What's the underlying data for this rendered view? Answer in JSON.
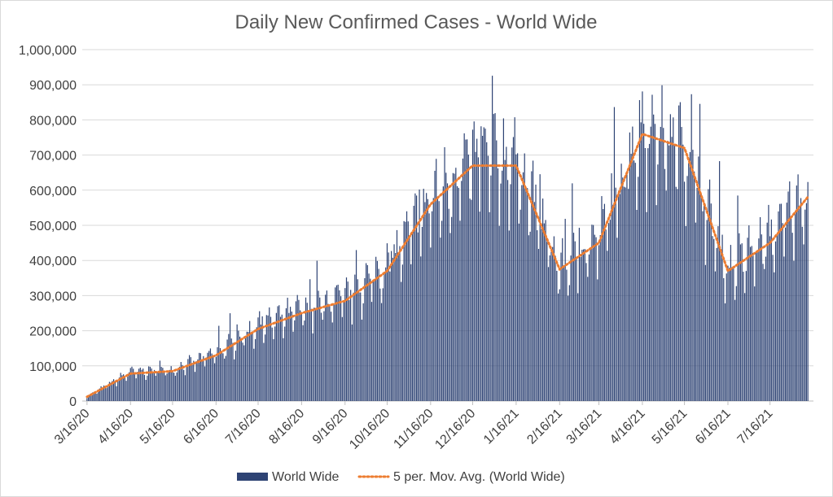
{
  "chart_data": {
    "type": "bar",
    "title": "Daily New Confirmed Cases - World Wide",
    "xlabel": "",
    "ylabel": "",
    "ylim": [
      0,
      1000000
    ],
    "yticks": [
      0,
      100000,
      200000,
      300000,
      400000,
      500000,
      600000,
      700000,
      800000,
      900000,
      1000000
    ],
    "ytick_labels": [
      "0",
      "100,000",
      "200,000",
      "300,000",
      "400,000",
      "500,000",
      "600,000",
      "700,000",
      "800,000",
      "900,000",
      "1,000,000"
    ],
    "x_start": "3/16/20",
    "x_end": "8/12/21",
    "x_tick_labels": [
      "3/16/20",
      "4/16/20",
      "5/16/20",
      "6/16/20",
      "7/16/20",
      "8/16/20",
      "9/16/20",
      "10/16/20",
      "11/16/20",
      "12/16/20",
      "1/16/21",
      "2/16/21",
      "3/16/21",
      "4/16/21",
      "5/16/21",
      "6/16/21",
      "7/16/21"
    ],
    "grid": true,
    "legend_position": "bottom",
    "colors": {
      "bars": "#2e4374",
      "moving_average": "#ed7d31"
    },
    "series": [
      {
        "name": "World Wide",
        "type": "bar",
        "monthly_anchor_values": [
          12000,
          82000,
          88000,
          135000,
          210000,
          255000,
          290000,
          380000,
          560000,
          680000,
          680000,
          370000,
          460000,
          770000,
          720000,
          370000,
          460000,
          610000
        ]
      },
      {
        "name": "5 per. Mov. Avg. (World Wide)",
        "type": "line",
        "style": "dotted",
        "monthly_anchor_values": [
          12000,
          78000,
          85000,
          130000,
          205000,
          250000,
          285000,
          370000,
          560000,
          670000,
          670000,
          375000,
          450000,
          760000,
          720000,
          370000,
          450000,
          600000
        ]
      }
    ]
  }
}
